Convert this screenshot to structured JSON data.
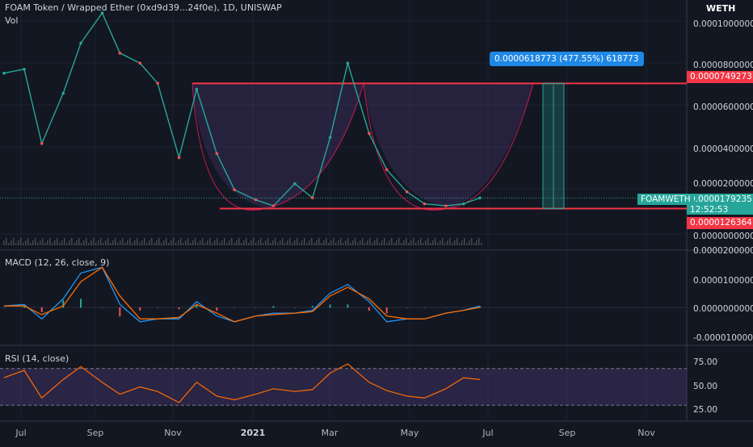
{
  "header": {
    "symbol": "FOAM Token / Wrapped Ether (0xd9d39...24f0e), 1D, UNISWAP",
    "volume_label": "Vol",
    "currency": "WETH"
  },
  "price_axis": {
    "ticks": [
      "0.0001000000",
      "0.0000800000",
      "0.0000600000",
      "0.0000400000",
      "0.0000200000",
      "0.0000000000"
    ],
    "tick_values": [
      0.0001,
      8e-05,
      6e-05,
      4e-05,
      2e-05,
      0.0
    ]
  },
  "badges": {
    "resistance": "0.0000749273",
    "support": "0.0000126364",
    "last_price": "0.0000179235",
    "countdown": "12:52:53",
    "symbol_tag": "FOAMWETH",
    "measure": "0.0000618773 (477.55%) 618773"
  },
  "macd_panel": {
    "label": "MACD (12, 26, close, 9)",
    "ticks": [
      "0.0000200000",
      "0.0000100000",
      "0.0000000000",
      "-0.0000100000"
    ]
  },
  "rsi_panel": {
    "label": "RSI (14, close)",
    "ticks": [
      "75.00",
      "50.00",
      "25.00"
    ]
  },
  "time_axis": [
    "Jul",
    "Sep",
    "Nov",
    "2021",
    "Mar",
    "May",
    "Jul",
    "Sep",
    "Nov"
  ],
  "colors": {
    "background": "#131722",
    "up": "#26a69a",
    "down": "#ef5350",
    "level_line": "#f23645",
    "macd_line": "#2196f3",
    "signal_line": "#ff6d00",
    "rsi_line": "#ff6d00",
    "rsi_band": "#7e57c2",
    "measure_badge": "#1e88e5",
    "last_price_badge": "#26a69a"
  },
  "chart_data": [
    {
      "type": "line",
      "title": "FOAM Token / Wrapped Ether (0xd9d39...24f0e), 1D, UNISWAP",
      "x": [
        "2020-06-15",
        "2020-07-01",
        "2020-07-15",
        "2020-08-01",
        "2020-08-15",
        "2020-09-01",
        "2020-09-15",
        "2020-10-01",
        "2020-10-15",
        "2020-11-01",
        "2020-11-15",
        "2020-12-01",
        "2020-12-15",
        "2021-01-01",
        "2021-01-15",
        "2021-02-01",
        "2021-02-15",
        "2021-03-01",
        "2021-03-15",
        "2021-04-01",
        "2021-04-15",
        "2021-05-01",
        "2021-05-15",
        "2021-06-01",
        "2021-06-15",
        "2021-06-28"
      ],
      "series": [
        {
          "values": [
            8e-05,
            8.2e-05,
            4.5e-05,
            7e-05,
            9.5e-05,
            0.00011,
            9e-05,
            8.5e-05,
            7.5e-05,
            3.8e-05,
            7.2e-05,
            4e-05,
            2.2e-05,
            1.7e-05,
            1.4e-05,
            2.5e-05,
            1.8e-05,
            4.8e-05,
            8.5e-05,
            5e-05,
            3.2e-05,
            2.1e-05,
            1.5e-05,
            1.4e-05,
            1.5e-05,
            1.79235e-05
          ]
        }
      ],
      "ylim": [
        0,
        0.00011
      ],
      "annotations": {
        "resistance": 7.49273e-05,
        "support": 1.26364e-05,
        "measure_change_pct": 477.55
      }
    },
    {
      "type": "line",
      "title": "MACD (12, 26, close, 9)",
      "x": [
        "2020-06-15",
        "2020-07-01",
        "2020-07-15",
        "2020-08-01",
        "2020-08-15",
        "2020-09-01",
        "2020-09-15",
        "2020-10-01",
        "2020-10-15",
        "2020-11-01",
        "2020-11-15",
        "2020-12-01",
        "2020-12-15",
        "2021-01-01",
        "2021-01-15",
        "2021-02-01",
        "2021-02-15",
        "2021-03-01",
        "2021-03-15",
        "2021-04-01",
        "2021-04-15",
        "2021-05-01",
        "2021-05-15",
        "2021-06-01",
        "2021-06-15",
        "2021-06-28"
      ],
      "series": [
        {
          "values": [
            5e-07,
            1e-06,
            -4e-06,
            3e-06,
            1.2e-05,
            1.4e-05,
            1e-06,
            -5e-06,
            -4e-06,
            -4e-06,
            2e-06,
            -3e-06,
            -5e-06,
            -3e-06,
            -2e-06,
            -2e-06,
            -1e-06,
            5e-06,
            8e-06,
            2e-06,
            -5e-06,
            -4e-06,
            -4e-06,
            -2e-06,
            -1e-06,
            5e-07
          ]
        },
        {
          "values": [
            5e-07,
            5e-07,
            -2.5e-06,
            5e-07,
            9e-06,
            1.4e-05,
            4e-06,
            -4e-06,
            -4e-06,
            -3.5e-06,
            1e-06,
            -2e-06,
            -5e-06,
            -3e-06,
            -2.5e-06,
            -2e-06,
            -1.5e-06,
            4e-06,
            7e-06,
            3e-06,
            -3e-06,
            -4e-06,
            -4e-06,
            -2e-06,
            -1e-06,
            0.0
          ]
        }
      ],
      "ylim": [
        -1.2e-05,
        2e-05
      ]
    },
    {
      "type": "line",
      "title": "RSI (14, close)",
      "x": [
        "2020-06-15",
        "2020-07-01",
        "2020-07-15",
        "2020-08-01",
        "2020-08-15",
        "2020-09-01",
        "2020-09-15",
        "2020-10-01",
        "2020-10-15",
        "2020-11-01",
        "2020-11-15",
        "2020-12-01",
        "2020-12-15",
        "2021-01-01",
        "2021-01-15",
        "2021-02-01",
        "2021-02-15",
        "2021-03-01",
        "2021-03-15",
        "2021-04-01",
        "2021-04-15",
        "2021-05-01",
        "2021-05-15",
        "2021-06-01",
        "2021-06-15",
        "2021-06-28"
      ],
      "series": [
        {
          "values": [
            60,
            68,
            38,
            58,
            72,
            55,
            42,
            50,
            45,
            33,
            55,
            40,
            36,
            42,
            48,
            45,
            47,
            65,
            75,
            55,
            46,
            40,
            38,
            48,
            60,
            58
          ]
        }
      ],
      "ylim": [
        15,
        90
      ],
      "annotations": {
        "overbought": 70,
        "oversold": 30
      }
    }
  ]
}
